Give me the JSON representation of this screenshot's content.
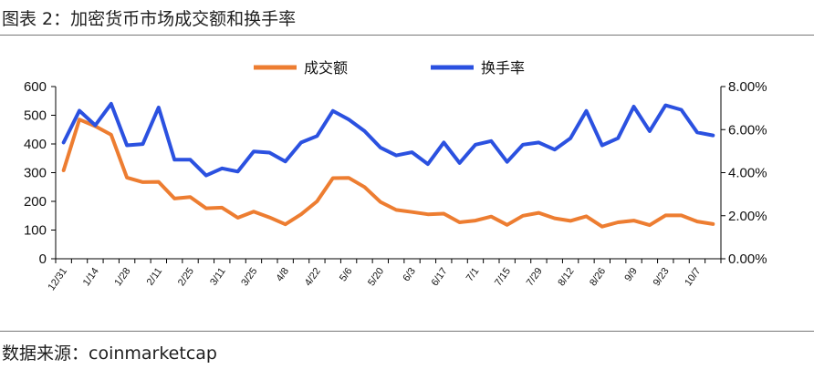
{
  "caption": "图表 2：加密货币市场成交额和换手率",
  "source": "数据来源：coinmarketcap",
  "chart_data": {
    "type": "line",
    "title": "",
    "dual_axis": true,
    "x": [
      "12/31",
      "1/7",
      "1/14",
      "1/21",
      "1/28",
      "2/4",
      "2/11",
      "2/18",
      "2/25",
      "3/4",
      "3/11",
      "3/18",
      "3/25",
      "4/1",
      "4/8",
      "4/15",
      "4/22",
      "4/29",
      "5/6",
      "5/13",
      "5/20",
      "5/27",
      "6/3",
      "6/10",
      "6/17",
      "6/24",
      "7/1",
      "7/8",
      "7/15",
      "7/22",
      "7/29",
      "8/5",
      "8/12",
      "8/19",
      "8/26",
      "9/2",
      "9/9",
      "9/16",
      "9/23",
      "9/30",
      "10/7",
      "10/14"
    ],
    "x_tick_labels": [
      "12/31",
      "1/14",
      "1/28",
      "2/11",
      "2/25",
      "3/11",
      "3/25",
      "4/8",
      "4/22",
      "5/6",
      "5/20",
      "6/3",
      "6/17",
      "7/1",
      "7/15",
      "7/29",
      "8/12",
      "8/26",
      "9/9",
      "9/23",
      "10/7"
    ],
    "y_left": {
      "ticks": [
        "0",
        "100",
        "200",
        "300",
        "400",
        "500",
        "600"
      ],
      "ylim": [
        0,
        600
      ]
    },
    "y_right": {
      "ticks": [
        "0.00%",
        "2.00%",
        "4.00%",
        "6.00%",
        "8.00%"
      ],
      "ylim": [
        0,
        8
      ]
    },
    "legend_position": "top",
    "grid": false,
    "series": [
      {
        "name": "成交额",
        "axis": "left",
        "color": "#ED7D31",
        "values": [
          308,
          485,
          462,
          432,
          283,
          267,
          268,
          210,
          215,
          176,
          178,
          143,
          164,
          144,
          120,
          155,
          200,
          281,
          282,
          250,
          198,
          170,
          163,
          155,
          157,
          127,
          133,
          147,
          118,
          150,
          160,
          141,
          132,
          148,
          112,
          127,
          133,
          117,
          151,
          151,
          130,
          121
        ]
      },
      {
        "name": "换手率",
        "axis": "right",
        "color": "#2B51E0",
        "values": [
          5.4,
          6.88,
          6.2,
          7.2,
          5.27,
          5.33,
          7.03,
          4.6,
          4.6,
          3.87,
          4.2,
          4.05,
          4.98,
          4.93,
          4.52,
          5.4,
          5.7,
          6.87,
          6.47,
          5.93,
          5.17,
          4.8,
          4.95,
          4.4,
          5.4,
          4.45,
          5.3,
          5.47,
          4.5,
          5.3,
          5.4,
          5.07,
          5.6,
          6.87,
          5.27,
          5.6,
          7.07,
          5.93,
          7.13,
          6.92,
          5.87,
          5.73
        ]
      }
    ]
  }
}
